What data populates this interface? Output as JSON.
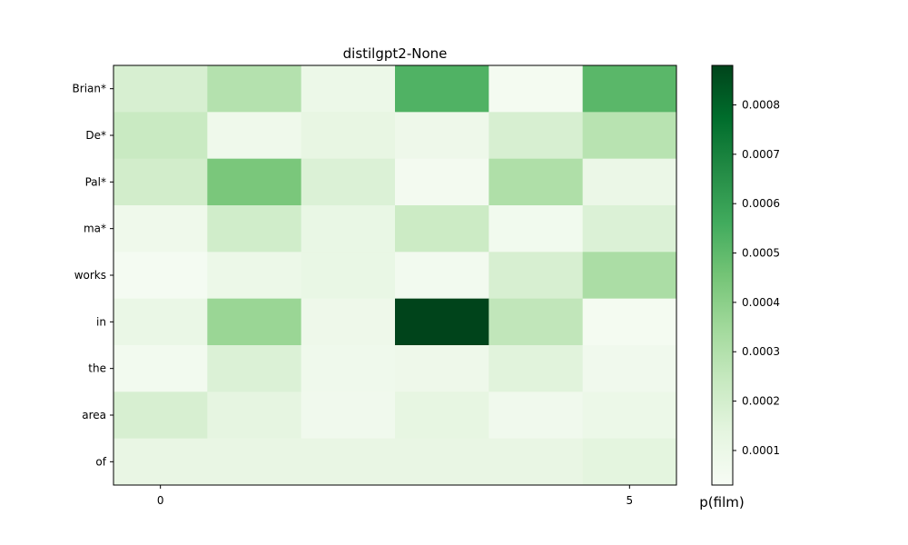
{
  "chart_data": {
    "type": "heatmap",
    "title": "distilgpt2-None",
    "rows": [
      "Brian*",
      "De*",
      "Pal*",
      "ma*",
      "works",
      "in",
      "the",
      "area",
      "of"
    ],
    "x_ticks": [
      0,
      5
    ],
    "values": [
      [
        0.000185,
        0.000295,
        9.5e-05,
        0.00053,
        5e-05,
        0.00051
      ],
      [
        0.000235,
        8e-05,
        0.00012,
        8.5e-05,
        0.000185,
        0.000285
      ],
      [
        0.000205,
        0.00044,
        0.00017,
        5.5e-05,
        0.00031,
        0.0001
      ],
      [
        8e-05,
        0.00021,
        0.00011,
        0.000225,
        6.5e-05,
        0.00017
      ],
      [
        4.5e-05,
        9.5e-05,
        0.00011,
        6e-05,
        0.000185,
        0.00032
      ],
      [
        0.000105,
        0.000365,
        8.5e-05,
        0.00088,
        0.00026,
        5e-05
      ],
      [
        6e-05,
        0.00017,
        7.5e-05,
        8.5e-05,
        0.00015,
        7e-05
      ],
      [
        0.000185,
        0.00013,
        7e-05,
        0.000125,
        7e-05,
        9.5e-05
      ],
      [
        0.000115,
        0.000115,
        0.000115,
        0.000115,
        0.000115,
        0.00014
      ]
    ],
    "colorbar": {
      "label": "p(film)",
      "min": 3e-05,
      "max": 0.00088,
      "ticks": [
        0.0001,
        0.0002,
        0.0003,
        0.0004,
        0.0005,
        0.0006,
        0.0007,
        0.0008
      ],
      "tick_labels": [
        "0.0001",
        "0.0002",
        "0.0003",
        "0.0004",
        "0.0005",
        "0.0006",
        "0.0007",
        "0.0008"
      ],
      "colormap": "Greens",
      "color_low": "#f7fcf5",
      "color_high": "#00441b"
    }
  }
}
